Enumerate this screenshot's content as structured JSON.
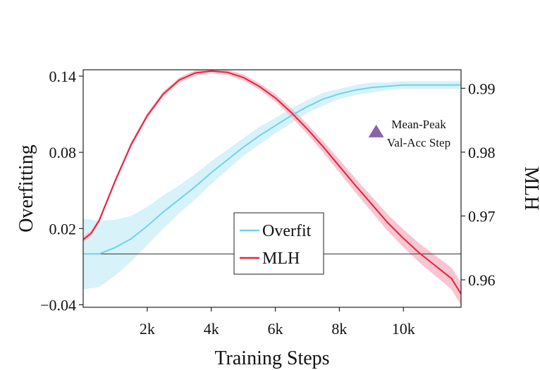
{
  "chart_data": {
    "type": "line",
    "title": "",
    "xlabel": "Training Steps",
    "ylabel_left": "Overfitting",
    "ylabel_right": "MLH",
    "xlim": [
      0,
      11800
    ],
    "ylim_left": [
      -0.042,
      0.145
    ],
    "ylim_right": [
      0.9557,
      0.9929
    ],
    "x_ticks": [
      {
        "value": 2000,
        "label": "2k"
      },
      {
        "value": 4000,
        "label": "4k"
      },
      {
        "value": 6000,
        "label": "6k"
      },
      {
        "value": 8000,
        "label": "8k"
      },
      {
        "value": 10000,
        "label": "10k"
      }
    ],
    "y_ticks_left": [
      {
        "value": 0.14,
        "label": "0.14"
      },
      {
        "value": 0.08,
        "label": "0.08"
      },
      {
        "value": 0.02,
        "label": "0.02"
      },
      {
        "value": -0.04,
        "label": "−0.04"
      }
    ],
    "y_ticks_right": [
      {
        "value": 0.99,
        "label": "0.99"
      },
      {
        "value": 0.98,
        "label": "0.98"
      },
      {
        "value": 0.97,
        "label": "0.97"
      },
      {
        "value": 0.96,
        "label": "0.96"
      }
    ],
    "reference_line": {
      "axis": "left",
      "value": 0.0
    },
    "series": [
      {
        "name": "Overfit",
        "axis": "left",
        "color": "#6fd3e8",
        "band_color": "#c9eef7",
        "x": [
          0,
          500,
          1000,
          1500,
          2000,
          2500,
          3000,
          3500,
          4000,
          4500,
          5000,
          5500,
          6000,
          6500,
          7000,
          7500,
          8000,
          8500,
          9000,
          9500,
          10000,
          10500,
          11000,
          11500,
          11800
        ],
        "y": [
          0.0,
          0.0,
          0.005,
          0.012,
          0.022,
          0.033,
          0.043,
          0.053,
          0.064,
          0.074,
          0.084,
          0.093,
          0.101,
          0.109,
          0.116,
          0.122,
          0.126,
          0.129,
          0.131,
          0.132,
          0.133,
          0.133,
          0.133,
          0.133,
          0.133
        ],
        "spread": [
          0.028,
          0.026,
          0.022,
          0.018,
          0.015,
          0.013,
          0.011,
          0.01,
          0.009,
          0.008,
          0.007,
          0.007,
          0.006,
          0.006,
          0.005,
          0.005,
          0.004,
          0.004,
          0.004,
          0.003,
          0.003,
          0.003,
          0.003,
          0.003,
          0.003
        ]
      },
      {
        "name": "MLH",
        "axis": "right",
        "color": "#e8203a",
        "band_color": "#f6b3c0",
        "x": [
          0,
          250,
          500,
          1000,
          1500,
          2000,
          2500,
          3000,
          3500,
          4000,
          4500,
          5000,
          5500,
          6000,
          6500,
          7000,
          7500,
          8000,
          8500,
          9000,
          9500,
          10000,
          10500,
          11000,
          11500,
          11800
        ],
        "y": [
          0.9663,
          0.9673,
          0.9693,
          0.9755,
          0.9812,
          0.9857,
          0.9891,
          0.9913,
          0.9924,
          0.9927,
          0.9925,
          0.9917,
          0.9903,
          0.9885,
          0.9862,
          0.9836,
          0.9808,
          0.9778,
          0.9748,
          0.9719,
          0.969,
          0.9665,
          0.9642,
          0.9622,
          0.9602,
          0.9578
        ],
        "spread": [
          0.0004,
          0.0004,
          0.0004,
          0.0004,
          0.0004,
          0.0004,
          0.0004,
          0.0004,
          0.0004,
          0.0004,
          0.0004,
          0.0005,
          0.0005,
          0.0006,
          0.0007,
          0.0008,
          0.0009,
          0.001,
          0.0011,
          0.0012,
          0.0013,
          0.0014,
          0.0015,
          0.0016,
          0.0017,
          0.0018
        ]
      }
    ],
    "marker": {
      "shape": "triangle",
      "color": "#8b63ad",
      "axis": "right",
      "x": 9150,
      "y": 0.9832,
      "label_lines": [
        "Mean-Peak",
        "Val-Acc Step"
      ]
    },
    "legend": {
      "placement": "lower-center",
      "entries": [
        "Overfit",
        "MLH"
      ]
    }
  }
}
